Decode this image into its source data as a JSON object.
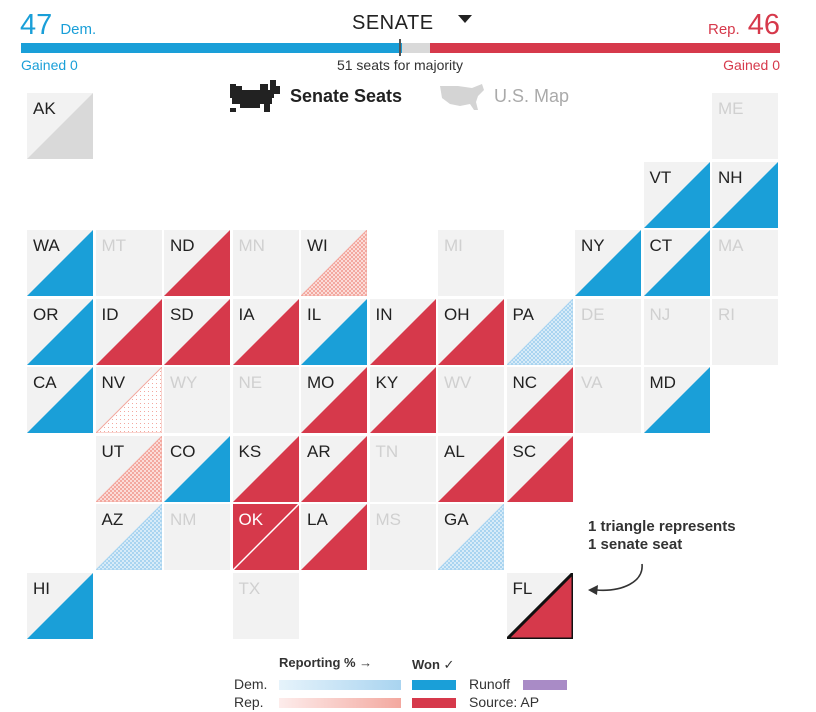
{
  "header": {
    "dem_count": "47",
    "dem_label": "Dem.",
    "rep_count": "46",
    "rep_label": "Rep.",
    "chamber": "SENATE",
    "dem_gained": "Gained 0",
    "rep_gained": "Gained 0",
    "majority_text": "51 seats for majority"
  },
  "tabs": {
    "senate": "Senate Seats",
    "map": "U.S. Map"
  },
  "colors": {
    "dem": "#1a9fd8",
    "rep": "#d6394b",
    "inactive": "#f2f2f2",
    "grey": "#d9d9d9",
    "dem_light": "#a9d4f0",
    "rep_light": "#f3a89f",
    "runoff": "#a98bc6"
  },
  "majority_bar": {
    "dem_fraction": 0.47,
    "rep_fraction": 0.46
  },
  "states": [
    {
      "code": "AK",
      "status": "uncalled",
      "row": 0,
      "col": 0
    },
    {
      "code": "ME",
      "status": "none",
      "row": 0,
      "col": 10
    },
    {
      "code": "VT",
      "status": "dem",
      "row": 1,
      "col": 9
    },
    {
      "code": "NH",
      "status": "dem",
      "row": 1,
      "col": 10
    },
    {
      "code": "WA",
      "status": "dem",
      "row": 2,
      "col": 0
    },
    {
      "code": "MT",
      "status": "none",
      "row": 2,
      "col": 1
    },
    {
      "code": "ND",
      "status": "rep",
      "row": 2,
      "col": 2
    },
    {
      "code": "MN",
      "status": "none",
      "row": 2,
      "col": 3
    },
    {
      "code": "WI",
      "status": "rep-lead",
      "row": 2,
      "col": 4
    },
    {
      "code": "MI",
      "status": "none",
      "row": 2,
      "col": 6
    },
    {
      "code": "NY",
      "status": "dem",
      "row": 2,
      "col": 8
    },
    {
      "code": "CT",
      "status": "dem",
      "row": 2,
      "col": 9
    },
    {
      "code": "MA",
      "status": "none",
      "row": 2,
      "col": 10
    },
    {
      "code": "OR",
      "status": "dem",
      "row": 3,
      "col": 0
    },
    {
      "code": "ID",
      "status": "rep",
      "row": 3,
      "col": 1
    },
    {
      "code": "SD",
      "status": "rep",
      "row": 3,
      "col": 2
    },
    {
      "code": "IA",
      "status": "rep",
      "row": 3,
      "col": 3
    },
    {
      "code": "IL",
      "status": "dem",
      "row": 3,
      "col": 4
    },
    {
      "code": "IN",
      "status": "rep",
      "row": 3,
      "col": 5
    },
    {
      "code": "OH",
      "status": "rep",
      "row": 3,
      "col": 6
    },
    {
      "code": "PA",
      "status": "dem-lead",
      "row": 3,
      "col": 7
    },
    {
      "code": "DE",
      "status": "none",
      "row": 3,
      "col": 8
    },
    {
      "code": "NJ",
      "status": "none",
      "row": 3,
      "col": 9
    },
    {
      "code": "RI",
      "status": "none",
      "row": 3,
      "col": 10
    },
    {
      "code": "CA",
      "status": "dem",
      "row": 4,
      "col": 0
    },
    {
      "code": "NV",
      "status": "rep-early",
      "row": 4,
      "col": 1
    },
    {
      "code": "WY",
      "status": "none",
      "row": 4,
      "col": 2
    },
    {
      "code": "NE",
      "status": "none",
      "row": 4,
      "col": 3
    },
    {
      "code": "MO",
      "status": "rep",
      "row": 4,
      "col": 4
    },
    {
      "code": "KY",
      "status": "rep",
      "row": 4,
      "col": 5
    },
    {
      "code": "WV",
      "status": "none",
      "row": 4,
      "col": 6
    },
    {
      "code": "NC",
      "status": "rep",
      "row": 4,
      "col": 7
    },
    {
      "code": "VA",
      "status": "none",
      "row": 4,
      "col": 8
    },
    {
      "code": "MD",
      "status": "dem",
      "row": 4,
      "col": 9
    },
    {
      "code": "UT",
      "status": "rep-lead",
      "row": 5,
      "col": 1
    },
    {
      "code": "CO",
      "status": "dem",
      "row": 5,
      "col": 2
    },
    {
      "code": "KS",
      "status": "rep",
      "row": 5,
      "col": 3
    },
    {
      "code": "AR",
      "status": "rep",
      "row": 5,
      "col": 4
    },
    {
      "code": "TN",
      "status": "none",
      "row": 5,
      "col": 5
    },
    {
      "code": "AL",
      "status": "rep",
      "row": 5,
      "col": 6
    },
    {
      "code": "SC",
      "status": "rep",
      "row": 5,
      "col": 7
    },
    {
      "code": "AZ",
      "status": "dem-lead",
      "row": 6,
      "col": 1
    },
    {
      "code": "NM",
      "status": "none",
      "row": 6,
      "col": 2
    },
    {
      "code": "OK",
      "status": "rep-double",
      "row": 6,
      "col": 3
    },
    {
      "code": "LA",
      "status": "rep",
      "row": 6,
      "col": 4
    },
    {
      "code": "MS",
      "status": "none",
      "row": 6,
      "col": 5
    },
    {
      "code": "GA",
      "status": "dem-lead",
      "row": 6,
      "col": 6
    },
    {
      "code": "HI",
      "status": "dem",
      "row": 7,
      "col": 0
    },
    {
      "code": "TX",
      "status": "none",
      "row": 7,
      "col": 3
    },
    {
      "code": "FL",
      "status": "rep-highlight",
      "row": 7,
      "col": 7
    }
  ],
  "annotation": {
    "line1": "1 triangle represents",
    "line2": "1 senate seat"
  },
  "legend": {
    "reporting": "Reporting % →",
    "won": "Won ✓",
    "dem": "Dem.",
    "rep": "Rep.",
    "runoff": "Runoff",
    "source": "Source: AP"
  }
}
